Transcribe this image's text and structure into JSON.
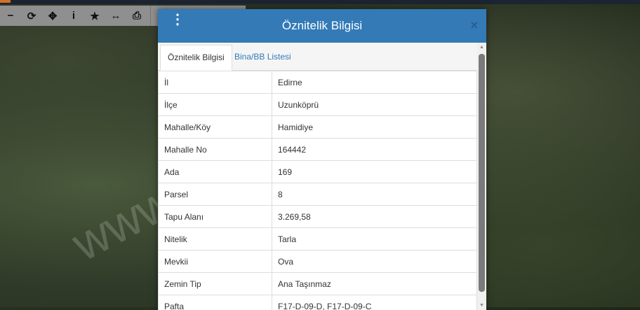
{
  "toolbar": {
    "items": [
      {
        "name": "zoom-out-icon",
        "glyph": "−"
      },
      {
        "name": "refresh-icon",
        "glyph": "⟳"
      },
      {
        "name": "locate-icon",
        "glyph": "✥"
      },
      {
        "name": "info-icon",
        "glyph": "i"
      },
      {
        "name": "star-icon",
        "glyph": "★"
      },
      {
        "name": "measure-icon",
        "glyph": "↔"
      },
      {
        "name": "print-icon",
        "glyph": "⎙"
      }
    ]
  },
  "modal": {
    "title": "Öznitelik Bilgisi",
    "menu_icon": "⋮",
    "close_icon": "×",
    "tabs": [
      {
        "label": "Öznitelik Bilgisi"
      },
      {
        "label": "Bina/BB Listesi"
      }
    ],
    "rows": [
      [
        "İl",
        "Edirne"
      ],
      [
        "İlçe",
        "Uzunköprü"
      ],
      [
        "Mahalle/Köy",
        "Hamidiye"
      ],
      [
        "Mahalle No",
        "164442"
      ],
      [
        "Ada",
        "169"
      ],
      [
        "Parsel",
        "8"
      ],
      [
        "Tapu Alanı",
        "3.269,58"
      ],
      [
        "Nitelik",
        "Tarla"
      ],
      [
        "Mevkii",
        "Ova"
      ],
      [
        "Zemin Tip",
        "Ana Taşınmaz"
      ],
      [
        "Pafta",
        "F17-D-09-D, F17-D-09-C"
      ]
    ]
  },
  "watermark": "www.........net.tr",
  "colors": {
    "header": "#337ab7",
    "link": "#337ab7"
  }
}
